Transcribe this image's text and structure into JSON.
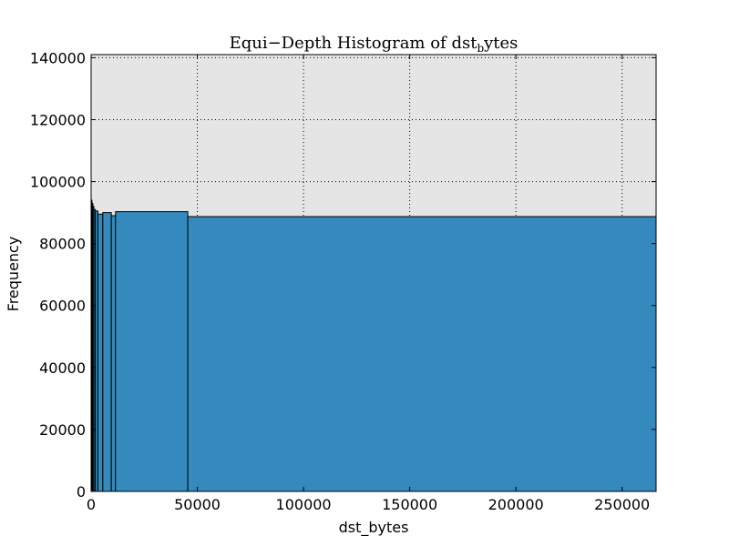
{
  "chart_data": {
    "type": "bar",
    "title_main": "Equi−Depth Histogram of dst",
    "title_sub": "b",
    "title_tail": "ytes",
    "xlabel": "dst_bytes",
    "ylabel": "Frequency",
    "xlim": [
      0,
      266000
    ],
    "ylim": [
      0,
      141000
    ],
    "x_ticks": [
      0,
      50000,
      100000,
      150000,
      200000,
      250000
    ],
    "x_tick_labels": [
      "0",
      "50000",
      "100000",
      "150000",
      "200000",
      "250000"
    ],
    "y_ticks": [
      0,
      20000,
      40000,
      60000,
      80000,
      100000,
      120000,
      140000
    ],
    "y_tick_labels": [
      "0",
      "20000",
      "40000",
      "60000",
      "80000",
      "100000",
      "120000",
      "140000"
    ],
    "grid": true,
    "colors": {
      "bar_fill": "#348abd",
      "bar_edge": "#000000",
      "plot_bg": "#e5e5e5",
      "grid": "#000000"
    },
    "bins": [
      {
        "x0": 0,
        "x1": 400,
        "value": 94000
      },
      {
        "x0": 400,
        "x1": 800,
        "value": 93000
      },
      {
        "x0": 800,
        "x1": 1300,
        "value": 92000
      },
      {
        "x0": 1300,
        "x1": 2000,
        "value": 91000
      },
      {
        "x0": 2000,
        "x1": 3200,
        "value": 90500
      },
      {
        "x0": 3200,
        "x1": 5500,
        "value": 89500
      },
      {
        "x0": 5500,
        "x1": 9500,
        "value": 90000
      },
      {
        "x0": 9500,
        "x1": 11500,
        "value": 89000
      },
      {
        "x0": 11500,
        "x1": 45500,
        "value": 90300
      },
      {
        "x0": 45500,
        "x1": 266000,
        "value": 88700
      }
    ]
  }
}
